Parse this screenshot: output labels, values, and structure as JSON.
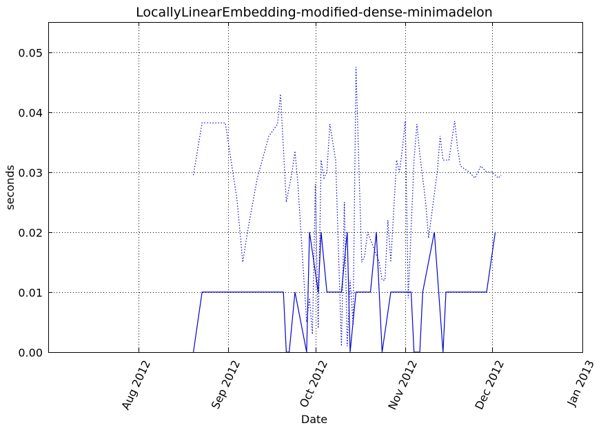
{
  "chart_data": {
    "type": "line",
    "title": "LocallyLinearEmbedding-modified-dense-minimadelon",
    "xlabel": "Date",
    "ylabel": "seconds",
    "xlim": [
      "2012-07-01",
      "2013-01-01"
    ],
    "ylim": [
      0,
      0.055
    ],
    "x_ticks": [
      {
        "date": "2012-08-01",
        "label": "Aug 2012"
      },
      {
        "date": "2012-09-01",
        "label": "Sep 2012"
      },
      {
        "date": "2012-10-01",
        "label": "Oct 2012"
      },
      {
        "date": "2012-11-01",
        "label": "Nov 2012"
      },
      {
        "date": "2012-12-01",
        "label": "Dec 2012"
      },
      {
        "date": "2013-01-01",
        "label": "Jan 2013"
      }
    ],
    "y_ticks": [
      {
        "value": 0.0,
        "label": "0.00"
      },
      {
        "value": 0.01,
        "label": "0.01"
      },
      {
        "value": 0.02,
        "label": "0.02"
      },
      {
        "value": 0.03,
        "label": "0.03"
      },
      {
        "value": 0.04,
        "label": "0.04"
      },
      {
        "value": 0.05,
        "label": "0.05"
      }
    ],
    "grid": true,
    "series_color": "#0000cc",
    "series": [
      {
        "style": "dotted",
        "x": [
          "2012-08-20",
          "2012-08-23",
          "2012-08-27",
          "2012-08-31",
          "2012-09-04",
          "2012-09-06",
          "2012-09-08",
          "2012-09-11",
          "2012-09-15",
          "2012-09-18",
          "2012-09-19",
          "2012-09-21",
          "2012-09-23",
          "2012-09-24",
          "2012-09-25",
          "2012-09-28",
          "2012-09-29",
          "2012-09-30",
          "2012-10-01",
          "2012-10-02",
          "2012-10-03",
          "2012-10-04",
          "2012-10-05",
          "2012-10-06",
          "2012-10-08",
          "2012-10-10",
          "2012-10-11",
          "2012-10-12",
          "2012-10-13",
          "2012-10-14",
          "2012-10-15",
          "2012-10-17",
          "2012-10-18",
          "2012-10-19",
          "2012-10-23",
          "2012-10-24",
          "2012-10-25",
          "2012-10-26",
          "2012-10-27",
          "2012-10-29",
          "2012-10-30",
          "2012-10-31",
          "2012-11-01",
          "2012-11-02",
          "2012-11-04",
          "2012-11-05",
          "2012-11-06",
          "2012-11-08",
          "2012-11-09",
          "2012-11-12",
          "2012-11-13",
          "2012-11-14",
          "2012-11-15",
          "2012-11-16",
          "2012-11-18",
          "2012-11-19",
          "2012-11-20",
          "2012-11-23",
          "2012-11-25",
          "2012-11-27",
          "2012-11-29",
          "2012-12-01",
          "2012-12-03",
          "2012-12-04"
        ],
        "y": [
          0.0295,
          0.0382,
          0.0382,
          0.0382,
          0.0255,
          0.015,
          0.021,
          0.029,
          0.036,
          0.038,
          0.043,
          0.025,
          0.03,
          0.0335,
          0.028,
          0.005,
          0.009,
          0.003,
          0.028,
          0.004,
          0.032,
          0.029,
          0.03,
          0.038,
          0.032,
          0.001,
          0.025,
          0.001,
          0.012,
          0.0045,
          0.0475,
          0.015,
          0.016,
          0.02,
          0.015,
          0.012,
          0.012,
          0.022,
          0.015,
          0.032,
          0.03,
          0.034,
          0.0385,
          0.009,
          0.032,
          0.038,
          0.033,
          0.025,
          0.019,
          0.03,
          0.036,
          0.032,
          0.032,
          0.032,
          0.0385,
          0.034,
          0.031,
          0.03,
          0.029,
          0.031,
          0.03,
          0.03,
          0.029,
          0.0295
        ]
      },
      {
        "style": "solid",
        "x": [
          "2012-08-20",
          "2012-08-23",
          "2012-09-20",
          "2012-09-21",
          "2012-09-22",
          "2012-09-24",
          "2012-09-28",
          "2012-09-29",
          "2012-10-02",
          "2012-10-03",
          "2012-10-05",
          "2012-10-10",
          "2012-10-12",
          "2012-10-13",
          "2012-10-15",
          "2012-10-20",
          "2012-10-22",
          "2012-10-24",
          "2012-10-27",
          "2012-11-03",
          "2012-11-04",
          "2012-11-06",
          "2012-11-07",
          "2012-11-11",
          "2012-11-14",
          "2012-11-15",
          "2012-11-17",
          "2012-11-20",
          "2012-11-29",
          "2012-12-02"
        ],
        "y": [
          0,
          0.01,
          0.01,
          0,
          0,
          0.01,
          0,
          0.02,
          0.01,
          0.02,
          0.01,
          0.01,
          0.02,
          0,
          0.01,
          0.01,
          0.02,
          0,
          0.01,
          0.01,
          0,
          0,
          0.01,
          0.02,
          0,
          0.01,
          0.01,
          0.01,
          0.01,
          0.02
        ]
      }
    ]
  }
}
